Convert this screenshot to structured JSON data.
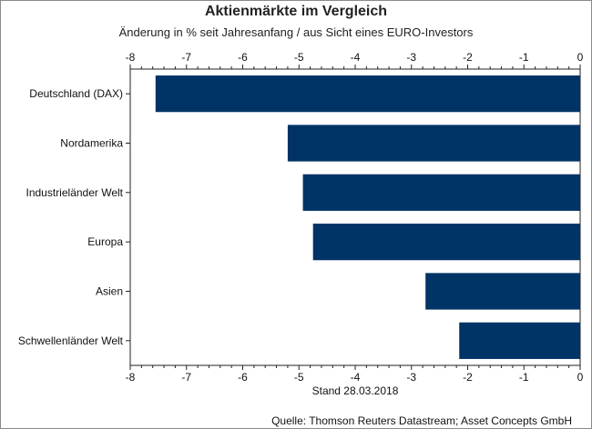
{
  "chart_data": {
    "type": "bar",
    "orientation": "horizontal",
    "title": "Aktienmärkte im Vergleich",
    "subtitle": "Änderung in % seit Jahresanfang / aus Sicht eines EURO-Investors",
    "xlabel": "Stand 28.03.2018",
    "ylabel": "",
    "xlim": [
      -8,
      0
    ],
    "xticks": [
      "-8",
      "-7",
      "-6",
      "-5",
      "-4",
      "-3",
      "-2",
      "-1",
      "0"
    ],
    "categories": [
      "Deutschland (DAX)",
      "Nordamerika",
      "Industrieländer Welt",
      "Europa",
      "Asien",
      "Schwellenländer Welt"
    ],
    "values": [
      -7.55,
      -5.2,
      -4.93,
      -4.75,
      -2.75,
      -2.15
    ],
    "bar_color": "#003366",
    "grid": false,
    "axis_ticks_top_and_bottom": true,
    "source": "Quelle: Thomson Reuters Datastream; Asset Concepts GmbH"
  }
}
